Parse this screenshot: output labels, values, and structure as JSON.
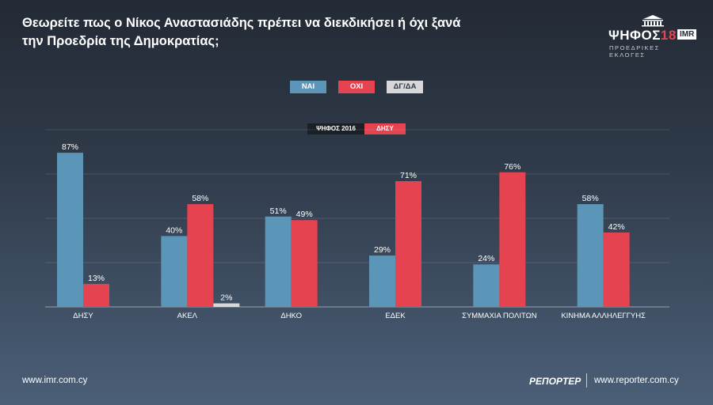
{
  "title": "Θεωρείτε πως ο Νίκος Αναστασιάδης πρέπει να διεκδικήσει ή όχι ξανά την Προεδρία της Δημοκρατίας;",
  "logo": {
    "main_text": "ΨΗΦΟΣ",
    "year_text": "18",
    "badge_text": "IMR",
    "subtitle": "ΠΡΟΕΔΡΙΚΕΣ ΕΚΛΟΓΕΣ"
  },
  "legend": {
    "nai": "ΝΑΙ",
    "oxi": "ΟΧΙ",
    "dgda": "ΔΓ/ΔΑ"
  },
  "filters": {
    "year": "ΨΗΦΟΣ 2016",
    "party": "ΔΗΣΥ"
  },
  "colors": {
    "nai": "#5b95b8",
    "oxi": "#e4434f",
    "dgda": "#d6d8da"
  },
  "chart_data": {
    "type": "bar",
    "categories": [
      "ΔΗΣΥ",
      "ΑΚΕΛ",
      "ΔΗΚΟ",
      "ΕΔΕΚ",
      "ΣΥΜΜΑΧΙΑ ΠΟΛΙΤΩΝ",
      "ΚΙΝΗΜΑ ΑΛΛΗΛΕΓΓΥΗΣ"
    ],
    "series": [
      {
        "name": "ΝΑΙ",
        "values": [
          87,
          40,
          51,
          29,
          24,
          58
        ]
      },
      {
        "name": "ΟΧΙ",
        "values": [
          13,
          58,
          49,
          71,
          76,
          42
        ]
      },
      {
        "name": "ΔΓ/ΔΑ",
        "values": [
          null,
          2,
          null,
          null,
          null,
          null
        ]
      }
    ],
    "value_suffix": "%",
    "ylim": [
      0,
      100
    ],
    "grid": true,
    "legend_position": "top-center"
  },
  "footer": {
    "left_url": "www.imr.com.cy",
    "brand": "ΡΕΠΟΡΤΕΡ",
    "right_url": "www.reporter.com.cy"
  }
}
